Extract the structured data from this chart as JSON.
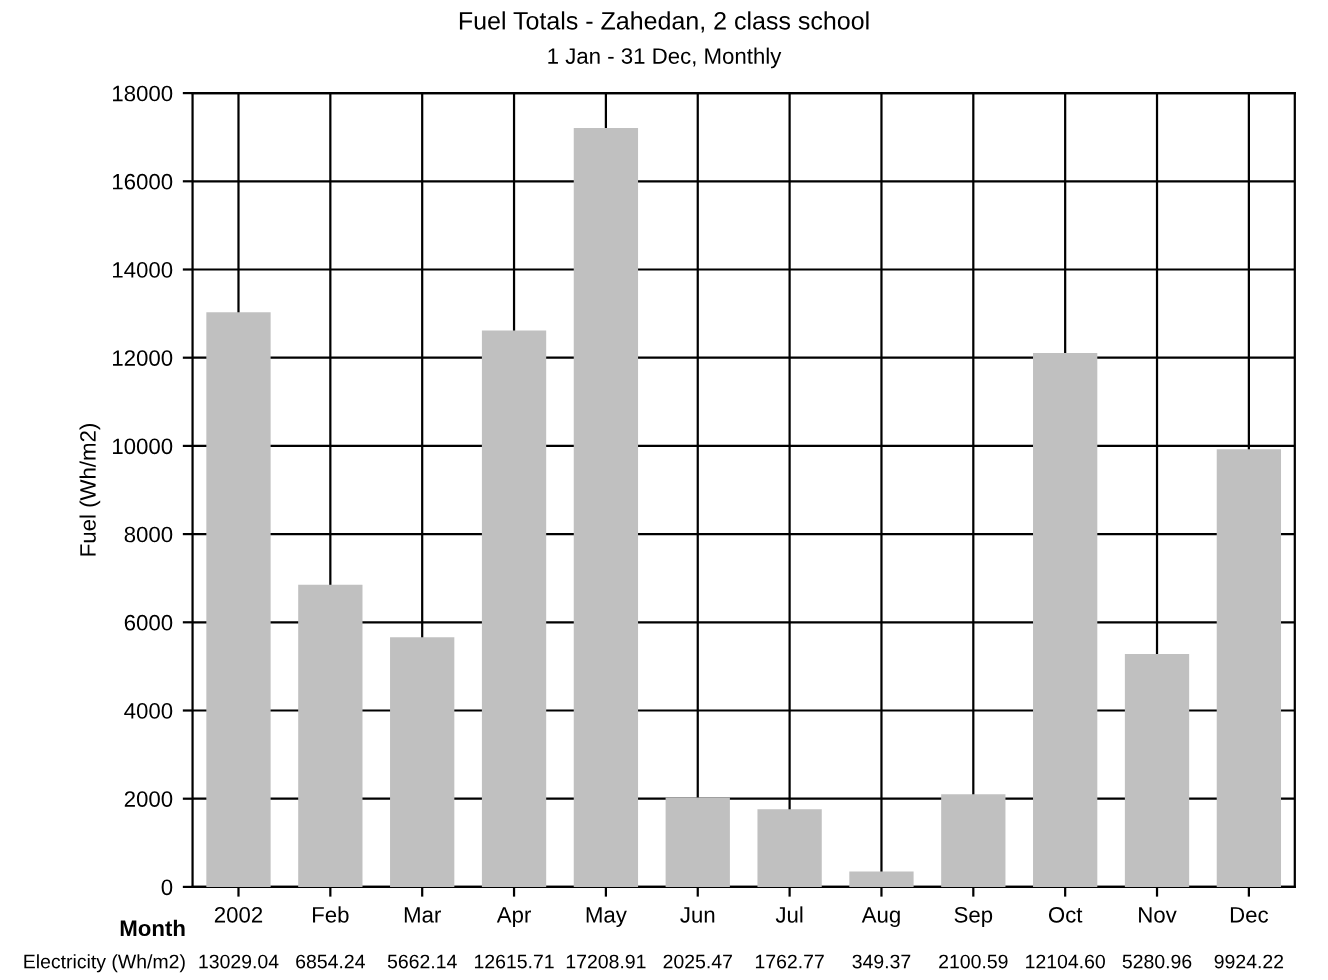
{
  "chart_data": {
    "type": "bar",
    "title": "Fuel Totals - Zahedan, 2 class school",
    "subtitle": "1 Jan - 31 Dec, Monthly",
    "xlabel": "Month",
    "ylabel": "Fuel (Wh/m2)",
    "categories": [
      "2002",
      "Feb",
      "Mar",
      "Apr",
      "May",
      "Jun",
      "Jul",
      "Aug",
      "Sep",
      "Oct",
      "Nov",
      "Dec"
    ],
    "series": [
      {
        "name": "Electricity (Wh/m2)",
        "color": "#c0c0c0",
        "values": [
          13029.04,
          6854.24,
          5662.14,
          12615.71,
          17208.91,
          2025.47,
          1762.77,
          349.37,
          2100.59,
          12104.6,
          5280.96,
          9924.22
        ]
      }
    ],
    "value_labels": [
      "13029.04",
      "6854.24",
      "5662.14",
      "12615.71",
      "17208.91",
      "2025.47",
      "1762.77",
      "349.37",
      "2100.59",
      "12104.60",
      "5280.96",
      "9924.22"
    ],
    "ylim": [
      0,
      18000
    ],
    "yticks": [
      0,
      2000,
      4000,
      6000,
      8000,
      10000,
      12000,
      14000,
      16000,
      18000
    ],
    "grid": true
  }
}
